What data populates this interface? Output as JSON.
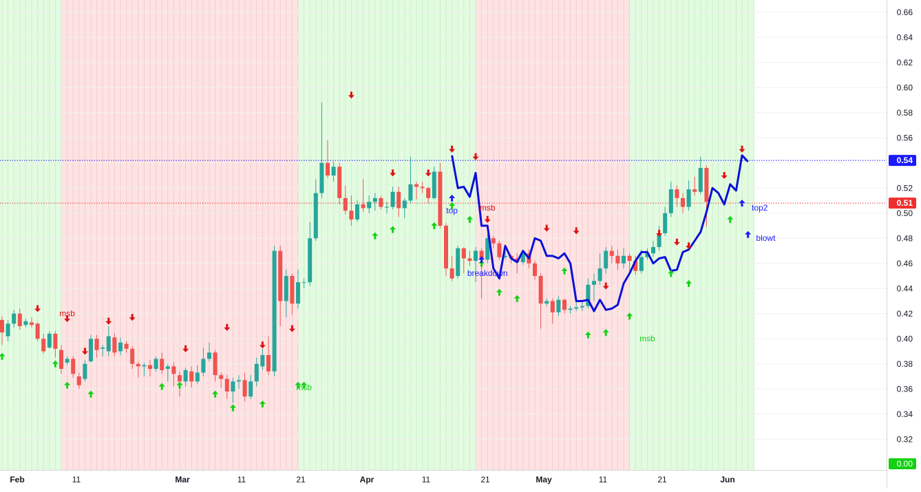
{
  "chart_data": {
    "type": "candlestick",
    "x_labels": [
      {
        "text": "Feb",
        "bar": 0
      },
      {
        "text": "11",
        "bar": 7
      },
      {
        "text": "Mar",
        "bar": 20
      },
      {
        "text": "11",
        "bar": 27
      },
      {
        "text": "21",
        "bar": 34
      },
      {
        "text": "Apr",
        "bar": 41
      },
      {
        "text": "11",
        "bar": 48
      },
      {
        "text": "21",
        "bar": 55
      },
      {
        "text": "May",
        "bar": 62
      },
      {
        "text": "11",
        "bar": 69
      },
      {
        "text": "21",
        "bar": 76
      },
      {
        "text": "Jun",
        "bar": 83
      }
    ],
    "y_ticks": [
      0.66,
      0.64,
      0.62,
      0.6,
      0.58,
      0.56,
      0.54,
      0.52,
      0.5,
      0.48,
      0.46,
      0.44,
      0.42,
      0.4,
      0.38,
      0.36,
      0.34,
      0.32
    ],
    "ylim": [
      0.3,
      0.67
    ],
    "colors": {
      "up": "#26a69a",
      "down": "#ef5350",
      "green_zone": "#e3fbe1",
      "red_zone": "#fde3e3",
      "trend_line": "#0a10d8",
      "level_blue": "#1a1aff",
      "level_red": "#ef2f2f",
      "arrow_up": "#14d114",
      "arrow_down": "#dd1111"
    },
    "zones": [
      {
        "start": 0,
        "end": 6,
        "color": "green"
      },
      {
        "start": 7,
        "end": 33,
        "color": "red"
      },
      {
        "start": 34,
        "end": 53,
        "color": "green"
      },
      {
        "start": 54,
        "end": 71,
        "color": "red"
      },
      {
        "start": 72,
        "end": 86,
        "color": "green"
      }
    ],
    "candles": [
      [
        0.415,
        0.405,
        0.418,
        0.395
      ],
      [
        0.402,
        0.412,
        0.415,
        0.398
      ],
      [
        0.412,
        0.42,
        0.423,
        0.409
      ],
      [
        0.42,
        0.41,
        0.424,
        0.407
      ],
      [
        0.411,
        0.414,
        0.416,
        0.409
      ],
      [
        0.413,
        0.411,
        0.417,
        0.409
      ],
      [
        0.412,
        0.4,
        0.413,
        0.398
      ],
      [
        0.4,
        0.39,
        0.404,
        0.388
      ],
      [
        0.393,
        0.404,
        0.406,
        0.392
      ],
      [
        0.404,
        0.392,
        0.406,
        0.385
      ],
      [
        0.391,
        0.376,
        0.395,
        0.372
      ],
      [
        0.381,
        0.384,
        0.386,
        0.379
      ],
      [
        0.384,
        0.372,
        0.386,
        0.369
      ],
      [
        0.37,
        0.363,
        0.373,
        0.36
      ],
      [
        0.368,
        0.38,
        0.383,
        0.366
      ],
      [
        0.382,
        0.4,
        0.403,
        0.381
      ],
      [
        0.4,
        0.391,
        0.403,
        0.385
      ],
      [
        0.392,
        0.393,
        0.395,
        0.386
      ],
      [
        0.39,
        0.402,
        0.41,
        0.386
      ],
      [
        0.401,
        0.389,
        0.404,
        0.386
      ],
      [
        0.39,
        0.397,
        0.401,
        0.387
      ],
      [
        0.396,
        0.392,
        0.398,
        0.389
      ],
      [
        0.392,
        0.38,
        0.394,
        0.376
      ],
      [
        0.38,
        0.378,
        0.382,
        0.369
      ],
      [
        0.378,
        0.379,
        0.381,
        0.37
      ],
      [
        0.379,
        0.376,
        0.383,
        0.37
      ],
      [
        0.376,
        0.384,
        0.386,
        0.374
      ],
      [
        0.384,
        0.375,
        0.389,
        0.372
      ],
      [
        0.376,
        0.378,
        0.38,
        0.366
      ],
      [
        0.378,
        0.372,
        0.381,
        0.362
      ],
      [
        0.371,
        0.366,
        0.374,
        0.354
      ],
      [
        0.366,
        0.375,
        0.377,
        0.362
      ],
      [
        0.374,
        0.366,
        0.378,
        0.361
      ],
      [
        0.366,
        0.373,
        0.379,
        0.364
      ],
      [
        0.373,
        0.384,
        0.393,
        0.37
      ],
      [
        0.384,
        0.389,
        0.397,
        0.382
      ],
      [
        0.389,
        0.371,
        0.391,
        0.366
      ],
      [
        0.371,
        0.368,
        0.373,
        0.361
      ],
      [
        0.368,
        0.358,
        0.371,
        0.352
      ],
      [
        0.358,
        0.366,
        0.369,
        0.349
      ],
      [
        0.366,
        0.367,
        0.371,
        0.36
      ],
      [
        0.367,
        0.354,
        0.373,
        0.35
      ],
      [
        0.354,
        0.366,
        0.371,
        0.352
      ],
      [
        0.366,
        0.38,
        0.385,
        0.362
      ],
      [
        0.378,
        0.387,
        0.392,
        0.375
      ],
      [
        0.387,
        0.374,
        0.402,
        0.371
      ],
      [
        0.374,
        0.47,
        0.474,
        0.37
      ],
      [
        0.47,
        0.43,
        0.474,
        0.41
      ],
      [
        0.43,
        0.45,
        0.455,
        0.417
      ],
      [
        0.45,
        0.428,
        0.452,
        0.419
      ],
      [
        0.428,
        0.445,
        0.455,
        0.424
      ],
      [
        0.445,
        0.445,
        0.448,
        0.44
      ],
      [
        0.445,
        0.48,
        0.493,
        0.442
      ],
      [
        0.48,
        0.516,
        0.527,
        0.478
      ],
      [
        0.516,
        0.54,
        0.588,
        0.512
      ],
      [
        0.54,
        0.53,
        0.558,
        0.528
      ],
      [
        0.53,
        0.537,
        0.541,
        0.525
      ],
      [
        0.537,
        0.512,
        0.54,
        0.507
      ],
      [
        0.512,
        0.502,
        0.522,
        0.499
      ],
      [
        0.502,
        0.495,
        0.514,
        0.49
      ],
      [
        0.495,
        0.507,
        0.51,
        0.493
      ],
      [
        0.507,
        0.504,
        0.527,
        0.501
      ],
      [
        0.504,
        0.509,
        0.514,
        0.5
      ],
      [
        0.509,
        0.512,
        0.516,
        0.502
      ],
      [
        0.512,
        0.505,
        0.514,
        0.503
      ],
      [
        0.505,
        0.505,
        0.509,
        0.5
      ],
      [
        0.505,
        0.517,
        0.521,
        0.503
      ],
      [
        0.517,
        0.504,
        0.521,
        0.497
      ],
      [
        0.504,
        0.51,
        0.512,
        0.496
      ]
    ],
    "candles_tail": [
      [
        0.51,
        0.523,
        0.545,
        0.508
      ],
      [
        0.523,
        0.521,
        0.525,
        0.511
      ],
      [
        0.521,
        0.52,
        0.525,
        0.516
      ],
      [
        0.52,
        0.512,
        0.521,
        0.508
      ],
      [
        0.512,
        0.533,
        0.537,
        0.511
      ],
      [
        0.533,
        0.49,
        0.54,
        0.488
      ],
      [
        0.49,
        0.456,
        0.492,
        0.45
      ],
      [
        0.456,
        0.448,
        0.466,
        0.446
      ],
      [
        0.45,
        0.472,
        0.474,
        0.448
      ],
      [
        0.472,
        0.464,
        0.473,
        0.452
      ],
      [
        0.464,
        0.462,
        0.47,
        0.458
      ],
      [
        0.462,
        0.47,
        0.473,
        0.445
      ],
      [
        0.47,
        0.463,
        0.472,
        0.432
      ],
      [
        0.463,
        0.48,
        0.483,
        0.46
      ],
      [
        0.48,
        0.476,
        0.482,
        0.472
      ],
      [
        0.476,
        0.465,
        0.478,
        0.463
      ],
      [
        0.465,
        0.466,
        0.47,
        0.463
      ],
      [
        0.466,
        0.464,
        0.467,
        0.46
      ],
      [
        0.464,
        0.461,
        0.468,
        0.452
      ],
      [
        0.461,
        0.468,
        0.471,
        0.459
      ],
      [
        0.468,
        0.46,
        0.471,
        0.456
      ],
      [
        0.46,
        0.45,
        0.462,
        0.447
      ],
      [
        0.45,
        0.428,
        0.452,
        0.408
      ],
      [
        0.428,
        0.43,
        0.432,
        0.426
      ],
      [
        0.43,
        0.421,
        0.432,
        0.412
      ],
      [
        0.421,
        0.431,
        0.434,
        0.418
      ],
      [
        0.431,
        0.423,
        0.432,
        0.42
      ],
      [
        0.423,
        0.424,
        0.426,
        0.42
      ],
      [
        0.424,
        0.425,
        0.432,
        0.422
      ],
      [
        0.425,
        0.426,
        0.43,
        0.422
      ],
      [
        0.426,
        0.443,
        0.448,
        0.424
      ],
      [
        0.443,
        0.446,
        0.452,
        0.43
      ],
      [
        0.446,
        0.456,
        0.468,
        0.443
      ],
      [
        0.456,
        0.47,
        0.473,
        0.452
      ],
      [
        0.47,
        0.466,
        0.474,
        0.46
      ],
      [
        0.466,
        0.46,
        0.471,
        0.455
      ],
      [
        0.46,
        0.466,
        0.472,
        0.456
      ],
      [
        0.466,
        0.462,
        0.468,
        0.454
      ],
      [
        0.462,
        0.454,
        0.466,
        0.451
      ],
      [
        0.454,
        0.465,
        0.471,
        0.452
      ],
      [
        0.465,
        0.468,
        0.472,
        0.463
      ],
      [
        0.468,
        0.473,
        0.478,
        0.465
      ],
      [
        0.473,
        0.484,
        0.49,
        0.47
      ],
      [
        0.484,
        0.5,
        0.505,
        0.482
      ],
      [
        0.5,
        0.519,
        0.525,
        0.497
      ],
      [
        0.519,
        0.512,
        0.522,
        0.505
      ],
      [
        0.512,
        0.505,
        0.516,
        0.5
      ],
      [
        0.505,
        0.519,
        0.526,
        0.502
      ],
      [
        0.519,
        0.517,
        0.529,
        0.514
      ],
      [
        0.517,
        0.536,
        0.545,
        0.515
      ],
      [
        0.536,
        0.509,
        0.538,
        0.489
      ]
    ],
    "trend_line": [
      [
        76,
        0.546
      ],
      [
        77,
        0.52
      ],
      [
        78,
        0.521
      ],
      [
        79,
        0.513
      ],
      [
        80,
        0.532
      ],
      [
        81,
        0.49
      ],
      [
        82,
        0.49
      ],
      [
        83,
        0.456
      ],
      [
        84,
        0.448
      ],
      [
        85,
        0.474
      ],
      [
        86,
        0.464
      ],
      [
        87,
        0.461
      ],
      [
        88,
        0.47
      ],
      [
        89,
        0.464
      ],
      [
        90,
        0.48
      ],
      [
        91,
        0.478
      ],
      [
        92,
        0.466
      ],
      [
        93,
        0.466
      ],
      [
        94,
        0.464
      ],
      [
        95,
        0.468
      ],
      [
        96,
        0.46
      ],
      [
        97,
        0.43
      ],
      [
        98,
        0.43
      ],
      [
        99,
        0.431
      ],
      [
        100,
        0.422
      ],
      [
        101,
        0.431
      ],
      [
        102,
        0.423
      ],
      [
        103,
        0.424
      ],
      [
        104,
        0.427
      ],
      [
        105,
        0.444
      ],
      [
        106,
        0.452
      ],
      [
        107,
        0.462
      ],
      [
        108,
        0.469
      ],
      [
        109,
        0.469
      ],
      [
        110,
        0.46
      ],
      [
        111,
        0.464
      ],
      [
        112,
        0.465
      ],
      [
        113,
        0.454
      ],
      [
        114,
        0.455
      ],
      [
        115,
        0.469
      ],
      [
        116,
        0.471
      ],
      [
        117,
        0.478
      ],
      [
        118,
        0.485
      ],
      [
        119,
        0.501
      ],
      [
        120,
        0.52
      ],
      [
        121,
        0.516
      ],
      [
        122,
        0.507
      ],
      [
        123,
        0.523
      ],
      [
        124,
        0.518
      ],
      [
        125,
        0.546
      ],
      [
        126,
        0.541
      ]
    ],
    "arrows_down": [
      [
        6,
        0.424
      ],
      [
        11,
        0.416
      ],
      [
        14,
        0.39
      ],
      [
        18,
        0.414
      ],
      [
        22,
        0.417
      ],
      [
        31,
        0.392
      ],
      [
        38,
        0.409
      ],
      [
        44,
        0.395
      ],
      [
        49,
        0.408
      ],
      [
        59,
        0.594
      ],
      [
        66,
        0.532
      ],
      [
        72,
        0.532
      ],
      [
        76,
        0.551
      ],
      [
        80,
        0.545
      ],
      [
        82,
        0.495
      ],
      [
        92,
        0.488
      ],
      [
        97,
        0.486
      ],
      [
        102,
        0.442
      ],
      [
        111,
        0.484
      ],
      [
        114,
        0.477
      ],
      [
        116,
        0.474
      ],
      [
        122,
        0.53
      ],
      [
        125,
        0.551
      ]
    ],
    "arrows_up": [
      [
        0,
        0.386
      ],
      [
        9,
        0.38
      ],
      [
        11,
        0.363
      ],
      [
        15,
        0.356
      ],
      [
        27,
        0.362
      ],
      [
        30,
        0.363
      ],
      [
        36,
        0.356
      ],
      [
        39,
        0.345
      ],
      [
        44,
        0.348
      ],
      [
        50,
        0.363
      ],
      [
        51,
        0.363
      ],
      [
        63,
        0.482
      ],
      [
        66,
        0.487
      ],
      [
        73,
        0.49
      ],
      [
        76,
        0.506
      ],
      [
        79,
        0.495
      ],
      [
        81,
        0.46
      ],
      [
        84,
        0.437
      ],
      [
        87,
        0.432
      ],
      [
        95,
        0.454
      ],
      [
        99,
        0.403
      ],
      [
        102,
        0.405
      ],
      [
        106,
        0.418
      ],
      [
        113,
        0.452
      ],
      [
        116,
        0.444
      ],
      [
        123,
        0.495
      ]
    ],
    "arrows_up_blue": [
      [
        76,
        0.512
      ],
      [
        81,
        0.463
      ],
      [
        125,
        0.508
      ],
      [
        126,
        0.483
      ]
    ],
    "annotations": [
      {
        "text": "msb",
        "bar": 11,
        "y": 0.418,
        "color": "#dd1111"
      },
      {
        "text": "msb",
        "bar": 51,
        "y": 0.359,
        "color": "#14d114"
      },
      {
        "text": "top",
        "bar": 76,
        "y": 0.5,
        "color": "#1a1aff"
      },
      {
        "text": "msb",
        "bar": 82,
        "y": 0.502,
        "color": "#dd1111"
      },
      {
        "text": "breakdown",
        "bar": 82,
        "y": 0.45,
        "color": "#1a1aff"
      },
      {
        "text": "msb",
        "bar": 109,
        "y": 0.398,
        "color": "#14d114"
      },
      {
        "text": "top2",
        "bar": 128,
        "y": 0.502,
        "color": "#1a1aff"
      },
      {
        "text": "blowt",
        "bar": 129,
        "y": 0.478,
        "color": "#1a1aff"
      }
    ],
    "levels": [
      {
        "value": 0.542,
        "label": "0.54",
        "color": "#1a1aff"
      },
      {
        "value": 0.508,
        "label": "0.51",
        "color": "#ef2f2f"
      }
    ],
    "bottom_label": {
      "text": "0.00",
      "color": "#14d114"
    }
  }
}
